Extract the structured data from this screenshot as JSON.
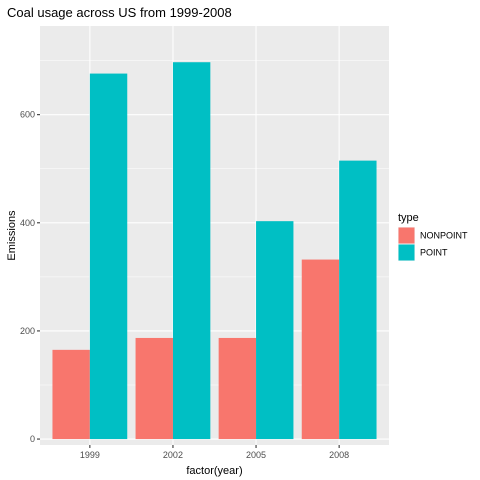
{
  "chart_data": {
    "type": "bar",
    "title": "Coal usage across US from 1999-2008",
    "xlabel": "factor(year)",
    "ylabel": "Emissions",
    "categories": [
      "1999",
      "2002",
      "2005",
      "2008"
    ],
    "series": [
      {
        "name": "NONPOINT",
        "values": [
          165,
          187,
          187,
          332
        ],
        "color": "#F8766D"
      },
      {
        "name": "POINT",
        "values": [
          676,
          697,
          403,
          515
        ],
        "color": "#00BFC4"
      }
    ],
    "ylim": [
      -11,
      764
    ],
    "yticks": [
      0,
      200,
      400,
      600
    ],
    "ytick_labels": [
      "0",
      "200",
      "400",
      "600"
    ],
    "grid": true,
    "panel_background": "#EBEBEB",
    "legend": {
      "title": "type",
      "position": "right"
    },
    "bar_position": "dodge"
  }
}
